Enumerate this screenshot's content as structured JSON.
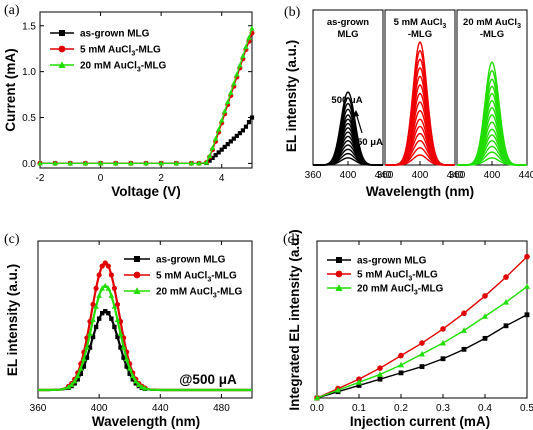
{
  "chart_data": [
    {
      "id": "a",
      "panel_label": "(a)",
      "type": "line",
      "xlabel": "Voltage (V)",
      "ylabel": "Current (mA)",
      "xlim": [
        -2,
        5
      ],
      "ylim": [
        -0.05,
        1.65
      ],
      "xticks": [
        -2,
        0,
        2,
        4
      ],
      "yticks": [
        0.0,
        0.5,
        1.0,
        1.5
      ],
      "ytick_labels": [
        "0.0",
        "0.5",
        "1.0",
        "1.5"
      ],
      "legend_position": "top-left",
      "series": [
        {
          "name": "as-grown MLG",
          "color": "#000000",
          "marker": "square",
          "x": [
            -2,
            -1.5,
            -1,
            -0.5,
            0,
            0.5,
            1,
            1.5,
            2,
            2.5,
            3,
            3.25,
            3.5,
            3.6,
            3.7,
            3.8,
            3.9,
            4.0,
            4.1,
            4.2,
            4.3,
            4.4,
            4.5,
            4.6,
            4.7,
            4.8,
            4.9,
            5.0
          ],
          "y": [
            0,
            0,
            0,
            0,
            0,
            0,
            0,
            0,
            0,
            0,
            0,
            0,
            0.005,
            0.03,
            0.06,
            0.09,
            0.12,
            0.15,
            0.18,
            0.21,
            0.24,
            0.27,
            0.3,
            0.33,
            0.36,
            0.4,
            0.45,
            0.5
          ]
        },
        {
          "name": "5 mM AuCl3-MLG",
          "name_parts": [
            "5 mM AuCl",
            "3",
            "-MLG"
          ],
          "color": "#e00000",
          "marker": "circle",
          "x": [
            -2,
            -1.5,
            -1,
            -0.5,
            0,
            0.5,
            1,
            1.5,
            2,
            2.5,
            3,
            3.25,
            3.5,
            3.6,
            3.7,
            3.8,
            3.9,
            4.0,
            4.1,
            4.2,
            4.3,
            4.4,
            4.5,
            4.6,
            4.7,
            4.8,
            4.9,
            5.0
          ],
          "y": [
            0,
            0,
            0,
            0,
            0,
            0,
            0,
            0,
            0,
            0,
            0,
            0,
            0.01,
            0.07,
            0.15,
            0.24,
            0.34,
            0.44,
            0.54,
            0.64,
            0.74,
            0.84,
            0.94,
            1.04,
            1.14,
            1.24,
            1.33,
            1.42
          ]
        },
        {
          "name": "20 mM AuCl3-MLG",
          "name_parts": [
            "20 mM AuCl",
            "3",
            "-MLG"
          ],
          "color": "#22dd00",
          "marker": "triangle",
          "x": [
            -2,
            -1.5,
            -1,
            -0.5,
            0,
            0.5,
            1,
            1.5,
            2,
            2.5,
            3,
            3.25,
            3.5,
            3.6,
            3.7,
            3.8,
            3.9,
            4.0,
            4.1,
            4.2,
            4.3,
            4.4,
            4.5,
            4.6,
            4.7,
            4.8,
            4.9,
            5.0
          ],
          "y": [
            0,
            0,
            0,
            0,
            0,
            0,
            0,
            0,
            0,
            0,
            0,
            0,
            0.01,
            0.08,
            0.17,
            0.27,
            0.37,
            0.47,
            0.57,
            0.67,
            0.77,
            0.87,
            0.97,
            1.07,
            1.17,
            1.27,
            1.37,
            1.47
          ]
        }
      ]
    },
    {
      "id": "b",
      "panel_label": "(b)",
      "type": "line",
      "xlabel": "Wavelength (nm)",
      "ylabel": "EL intensity (a.u.)",
      "peak_wavelength": 400,
      "subpanels": [
        {
          "title": [
            "as-grown",
            "MLG"
          ],
          "color": "#000000",
          "xlim": [
            360,
            440
          ],
          "xticks": [
            360,
            400,
            440
          ],
          "peak_heights": [
            0.05,
            0.08,
            0.11,
            0.14,
            0.17,
            0.2,
            0.23,
            0.26,
            0.29,
            0.32,
            0.35,
            0.39,
            0.43,
            0.47,
            0.51
          ]
        },
        {
          "title": [
            "5 mM AuCl3",
            "-MLG"
          ],
          "title_parts": [
            "5 mM AuCl",
            "3"
          ],
          "color": "#ee0000",
          "xlim": [
            360,
            440
          ],
          "xticks": [
            360,
            400,
            440
          ],
          "peak_heights": [
            0.07,
            0.12,
            0.17,
            0.22,
            0.27,
            0.32,
            0.38,
            0.44,
            0.5,
            0.56,
            0.62,
            0.68,
            0.74,
            0.8,
            0.86
          ]
        },
        {
          "title": [
            "20 mM AuCl3",
            "-MLG"
          ],
          "title_parts": [
            "20 mM AuCl",
            "3"
          ],
          "color": "#22dd00",
          "xlim": [
            360,
            440
          ],
          "xticks": [
            360,
            400,
            440
          ],
          "peak_heights": [
            0.05,
            0.09,
            0.13,
            0.17,
            0.21,
            0.25,
            0.3,
            0.35,
            0.4,
            0.45,
            0.5,
            0.55,
            0.6,
            0.66,
            0.72
          ]
        }
      ],
      "annotations": [
        "500 μA",
        "50 μA"
      ]
    },
    {
      "id": "c",
      "panel_label": "(c)",
      "type": "line",
      "xlabel": "Wavelength (nm)",
      "ylabel": "EL intensity (a.u.)",
      "xlim": [
        360,
        500
      ],
      "xticks": [
        360,
        400,
        440,
        480
      ],
      "annotation": "@500 μA",
      "legend_position": "top-right",
      "series": [
        {
          "name": "as-grown MLG",
          "color": "#000000",
          "marker": "square",
          "peak_x": 404,
          "peak_y": 0.62
        },
        {
          "name": "5 mM AuCl3-MLG",
          "name_parts": [
            "5 mM AuCl",
            "3",
            "-MLG"
          ],
          "color": "#e00000",
          "marker": "circle",
          "peak_x": 404,
          "peak_y": 1.0
        },
        {
          "name": "20 mM AuCl3-MLG",
          "name_parts": [
            "20 mM AuCl",
            "3",
            "-MLG"
          ],
          "color": "#22dd00",
          "marker": "triangle",
          "peak_x": 404,
          "peak_y": 0.82
        }
      ]
    },
    {
      "id": "d",
      "panel_label": "(d)",
      "type": "line",
      "xlabel": "Injection current (mA)",
      "ylabel": "Integrated EL intensity (a.u.)",
      "xlim": [
        0,
        0.5
      ],
      "xticks": [
        0.0,
        0.1,
        0.2,
        0.3,
        0.4,
        0.5
      ],
      "xtick_labels": [
        "0.0",
        "0.1",
        "0.2",
        "0.3",
        "0.4",
        "0.5"
      ],
      "legend_position": "top-left",
      "series": [
        {
          "name": "as-grown MLG",
          "color": "#000000",
          "marker": "square",
          "x": [
            0.0,
            0.05,
            0.1,
            0.15,
            0.2,
            0.25,
            0.3,
            0.35,
            0.4,
            0.45,
            0.5
          ],
          "y": [
            0.0,
            0.04,
            0.08,
            0.12,
            0.16,
            0.2,
            0.25,
            0.31,
            0.38,
            0.46,
            0.53
          ]
        },
        {
          "name": "5 mM AuCl3-MLG",
          "name_parts": [
            "5 mM AuCl",
            "3",
            "-MLG"
          ],
          "color": "#e00000",
          "marker": "circle",
          "x": [
            0.0,
            0.05,
            0.1,
            0.15,
            0.2,
            0.25,
            0.3,
            0.35,
            0.4,
            0.45,
            0.5
          ],
          "y": [
            0.0,
            0.06,
            0.12,
            0.19,
            0.27,
            0.35,
            0.44,
            0.54,
            0.65,
            0.77,
            0.9
          ]
        },
        {
          "name": "20 mM AuCl3-MLG",
          "name_parts": [
            "20 mM AuCl",
            "3",
            "-MLG"
          ],
          "color": "#22dd00",
          "marker": "triangle",
          "x": [
            0.0,
            0.05,
            0.1,
            0.15,
            0.2,
            0.25,
            0.3,
            0.35,
            0.4,
            0.45,
            0.5
          ],
          "y": [
            0.0,
            0.05,
            0.1,
            0.15,
            0.21,
            0.28,
            0.35,
            0.43,
            0.52,
            0.61,
            0.71
          ]
        }
      ]
    }
  ]
}
